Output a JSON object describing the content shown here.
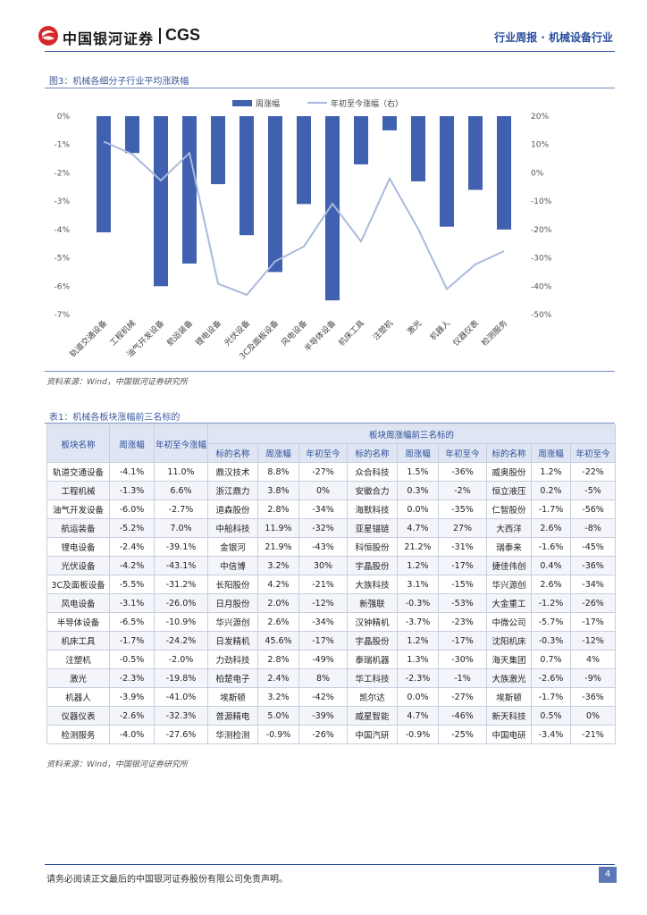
{
  "header": {
    "logo_cn": "中国银河证券",
    "logo_en": "CGS",
    "report_type": "行业周报 · 机械设备行业"
  },
  "figure": {
    "title": "图3：机械各细分子行业平均涨跌幅",
    "source": "资料来源：Wind，中国银河证券研究所"
  },
  "chart_data": {
    "type": "bar+line",
    "categories": [
      "轨道交通设备",
      "工程机械",
      "油气开发设备",
      "航运装备",
      "锂电设备",
      "光伏设备",
      "3C及面板设备",
      "风电设备",
      "半导体设备",
      "机床工具",
      "注塑机",
      "激光",
      "机器人",
      "仪器仪表",
      "检测服务"
    ],
    "series": [
      {
        "name": "周涨幅",
        "axis": "left",
        "kind": "bar",
        "values": [
          -4.1,
          -1.3,
          -6.0,
          -5.2,
          -2.4,
          -4.2,
          -5.5,
          -3.1,
          -6.5,
          -1.7,
          -0.5,
          -2.3,
          -3.9,
          -2.6,
          -4.0
        ]
      },
      {
        "name": "年初至今涨幅（右）",
        "axis": "right",
        "kind": "line",
        "values": [
          11.0,
          6.6,
          -2.7,
          7.0,
          -39.1,
          -43.1,
          -31.2,
          -26.0,
          -10.9,
          -24.2,
          -2.0,
          -19.8,
          -41.0,
          -32.3,
          -27.6
        ]
      }
    ],
    "left_axis": {
      "ylim": [
        -7,
        0
      ],
      "ticks": [
        "0%",
        "-1%",
        "-2%",
        "-3%",
        "-4%",
        "-5%",
        "-6%",
        "-7%"
      ]
    },
    "right_axis": {
      "ylim": [
        -50,
        20
      ],
      "ticks": [
        "20%",
        "10%",
        "0%",
        "-10%",
        "-20%",
        "-30%",
        "-40%",
        "-50%"
      ]
    },
    "colors": {
      "bar": "#4060b0",
      "line": "#a9b9dc"
    },
    "legend_position": "top-center"
  },
  "table": {
    "title": "表1：机械各板块涨幅前三名标的",
    "source": "资料来源：Wind，中国银河证券研究所",
    "group_header": "板块周涨幅前三名标的",
    "headers": [
      "板块名称",
      "周涨幅",
      "年初至今涨幅",
      "标的名称",
      "周涨幅",
      "年初至今",
      "标的名称",
      "周涨幅",
      "年初至今",
      "标的名称",
      "周涨幅",
      "年初至今"
    ],
    "rows": [
      [
        "轨道交通设备",
        "-4.1%",
        "11.0%",
        "鼎汉技术",
        "8.8%",
        "-27%",
        "众合科技",
        "1.5%",
        "-36%",
        "威奥股份",
        "1.2%",
        "-22%"
      ],
      [
        "工程机械",
        "-1.3%",
        "6.6%",
        "浙江鼎力",
        "3.8%",
        "0%",
        "安徽合力",
        "0.3%",
        "-2%",
        "恒立液压",
        "0.2%",
        "-5%"
      ],
      [
        "油气开发设备",
        "-6.0%",
        "-2.7%",
        "道森股份",
        "2.8%",
        "-34%",
        "海默科技",
        "0.0%",
        "-35%",
        "仁智股份",
        "-1.7%",
        "-56%"
      ],
      [
        "航运装备",
        "-5.2%",
        "7.0%",
        "中船科技",
        "11.9%",
        "-32%",
        "亚星锚链",
        "4.7%",
        "27%",
        "大西洋",
        "2.6%",
        "-8%"
      ],
      [
        "锂电设备",
        "-2.4%",
        "-39.1%",
        "金银河",
        "21.9%",
        "-43%",
        "科恒股份",
        "21.2%",
        "-31%",
        "瑞泰来",
        "-1.6%",
        "-45%"
      ],
      [
        "光伏设备",
        "-4.2%",
        "-43.1%",
        "中信博",
        "3.2%",
        "30%",
        "宇晶股份",
        "1.2%",
        "-17%",
        "捷佳伟创",
        "0.4%",
        "-36%"
      ],
      [
        "3C及面板设备",
        "-5.5%",
        "-31.2%",
        "长阳股份",
        "4.2%",
        "-21%",
        "大族科技",
        "3.1%",
        "-15%",
        "华兴源创",
        "2.6%",
        "-34%"
      ],
      [
        "风电设备",
        "-3.1%",
        "-26.0%",
        "日月股份",
        "2.0%",
        "-12%",
        "新强联",
        "-0.3%",
        "-53%",
        "大金重工",
        "-1.2%",
        "-26%"
      ],
      [
        "半导体设备",
        "-6.5%",
        "-10.9%",
        "华兴源创",
        "2.6%",
        "-34%",
        "汉钟精机",
        "-3.7%",
        "-23%",
        "中微公司",
        "-5.7%",
        "-17%"
      ],
      [
        "机床工具",
        "-1.7%",
        "-24.2%",
        "日发精机",
        "45.6%",
        "-17%",
        "宇晶股份",
        "1.2%",
        "-17%",
        "沈阳机床",
        "-0.3%",
        "-12%"
      ],
      [
        "注塑机",
        "-0.5%",
        "-2.0%",
        "力劲科技",
        "2.8%",
        "-49%",
        "泰瑞机器",
        "1.3%",
        "-30%",
        "海天集团",
        "0.7%",
        "4%"
      ],
      [
        "激光",
        "-2.3%",
        "-19.8%",
        "柏楚电子",
        "2.4%",
        "8%",
        "华工科技",
        "-2.3%",
        "-1%",
        "大族激光",
        "-2.6%",
        "-9%"
      ],
      [
        "机器人",
        "-3.9%",
        "-41.0%",
        "埃斯顿",
        "3.2%",
        "-42%",
        "凯尔达",
        "0.0%",
        "-27%",
        "埃斯顿",
        "-1.7%",
        "-36%"
      ],
      [
        "仪器仪表",
        "-2.6%",
        "-32.3%",
        "普源精电",
        "5.0%",
        "-39%",
        "威星智能",
        "4.7%",
        "-46%",
        "新天科技",
        "0.5%",
        "0%"
      ],
      [
        "检测服务",
        "-4.0%",
        "-27.6%",
        "华测检测",
        "-0.9%",
        "-26%",
        "中国汽研",
        "-0.9%",
        "-25%",
        "中国电研",
        "-3.4%",
        "-21%"
      ]
    ]
  },
  "footer": {
    "disclaimer": "请务必阅读正文最后的中国银河证券股份有限公司免责声明。",
    "page_number": "4"
  }
}
